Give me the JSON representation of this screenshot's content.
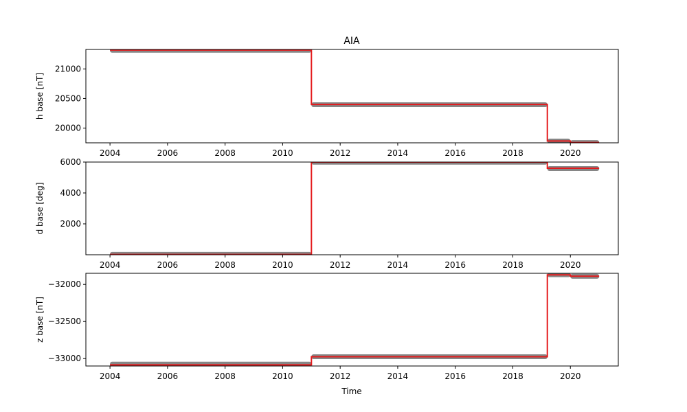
{
  "chart_data": {
    "title": "AIA",
    "xlabel": "Time",
    "type": "line",
    "scatter_color": "#808080",
    "line_color": "#e41a1c",
    "x_ticks": [
      "2004",
      "2006",
      "2008",
      "2010",
      "2012",
      "2014",
      "2016",
      "2018",
      "2020"
    ],
    "panels": [
      {
        "ylabel": "h base [nT]",
        "ylim": [
          19750,
          21330
        ],
        "y_ticks": [
          20000,
          20500,
          21000
        ],
        "y_tick_labels": [
          "20000",
          "20500",
          "21000"
        ],
        "segments": [
          {
            "x": [
              "2004-01-01",
              "2011-01-01"
            ],
            "y": 21315
          },
          {
            "x": [
              "2011-01-01",
              "2019-03-15"
            ],
            "y": 20395
          },
          {
            "x": [
              "2019-03-15",
              "2020-01-01"
            ],
            "y": 19780
          },
          {
            "x": [
              "2020-01-01",
              "2021-01-01"
            ],
            "y": 19755
          }
        ],
        "red_segments": [
          {
            "x": [
              "2004-01-01",
              "2011-01-01"
            ],
            "y": 21320
          },
          {
            "x": [
              "2011-01-01",
              "2019-03-15"
            ],
            "y": 20400
          },
          {
            "x": [
              "2019-03-15",
              "2020-01-01"
            ],
            "y": 19780
          },
          {
            "x": [
              "2020-01-01",
              "2021-01-01"
            ],
            "y": 19755
          }
        ]
      },
      {
        "ylabel": "d base [deg]",
        "ylim": [
          0,
          6000
        ],
        "y_ticks": [
          2000,
          4000,
          6000
        ],
        "y_tick_labels": [
          "2000",
          "4000",
          "6000"
        ],
        "segments": [
          {
            "x": [
              "2004-01-01",
              "2011-01-01"
            ],
            "y": 30
          },
          {
            "x": [
              "2011-01-01",
              "2019-03-15"
            ],
            "y": 5990
          },
          {
            "x": [
              "2019-03-15",
              "2021-01-01"
            ],
            "y": 5580
          }
        ],
        "red_segments": [
          {
            "x": [
              "2004-01-01",
              "2011-01-01"
            ],
            "y": 20
          },
          {
            "x": [
              "2011-01-01",
              "2019-03-15"
            ],
            "y": 6000
          },
          {
            "x": [
              "2019-03-15",
              "2021-01-01"
            ],
            "y": 5600
          }
        ]
      },
      {
        "ylabel": "z base [nT]",
        "ylim": [
          -33100,
          -31850
        ],
        "y_ticks": [
          -33000,
          -32500,
          -32000
        ],
        "y_tick_labels": [
          "−33000",
          "−32500",
          "−32000"
        ],
        "segments": [
          {
            "x": [
              "2004-01-01",
              "2011-01-01"
            ],
            "y": -33075
          },
          {
            "x": [
              "2011-01-01",
              "2019-03-15"
            ],
            "y": -32975
          },
          {
            "x": [
              "2019-03-15",
              "2020-01-01"
            ],
            "y": -31870
          },
          {
            "x": [
              "2020-01-01",
              "2021-01-01"
            ],
            "y": -31890
          }
        ],
        "red_segments": [
          {
            "x": [
              "2004-01-01",
              "2011-01-01"
            ],
            "y": -33085
          },
          {
            "x": [
              "2011-01-01",
              "2019-03-15"
            ],
            "y": -32975
          },
          {
            "x": [
              "2019-03-15",
              "2020-01-01"
            ],
            "y": -31870
          },
          {
            "x": [
              "2020-01-01",
              "2021-01-01"
            ],
            "y": -31890
          }
        ]
      }
    ],
    "xlim": [
      "2003-03-01",
      "2021-09-01"
    ]
  }
}
